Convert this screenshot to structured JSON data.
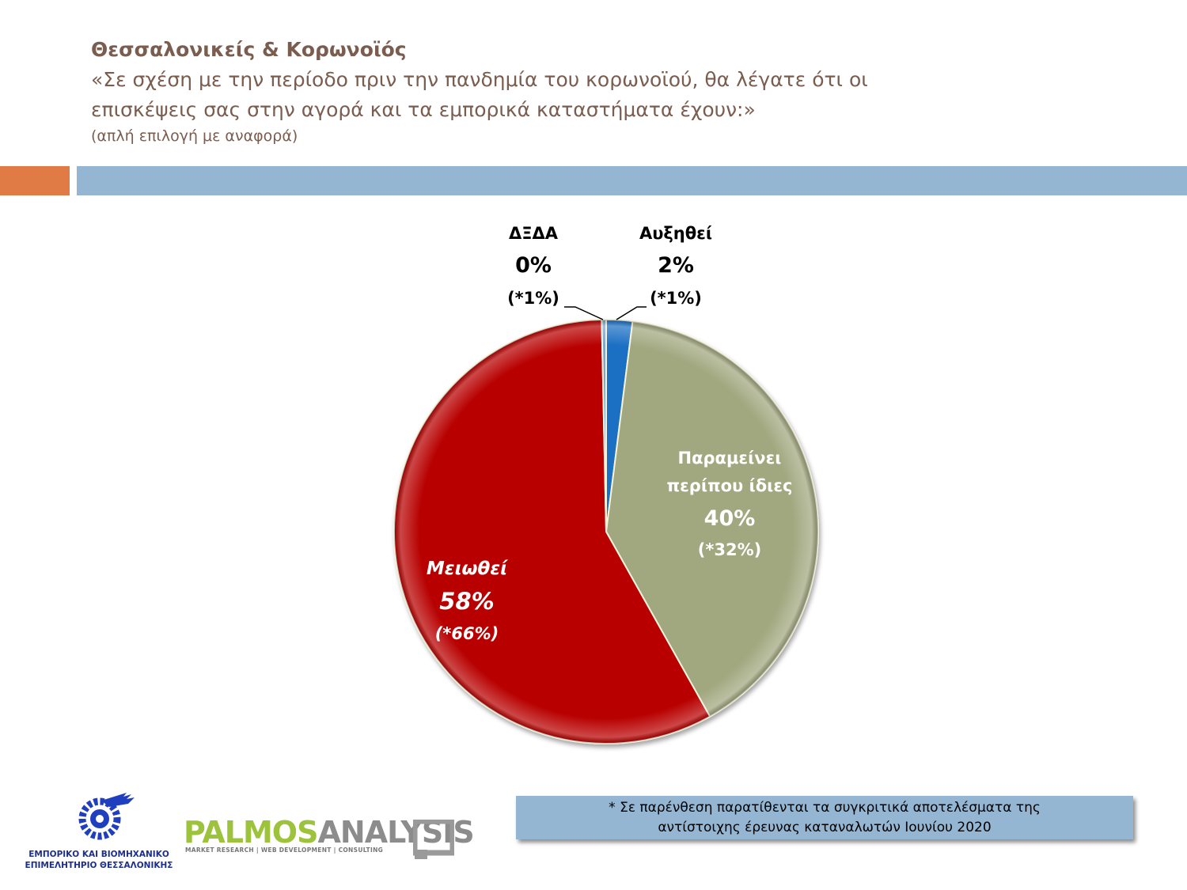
{
  "header": {
    "title": "Θεσσαλονικείς & Κορωνοϊός",
    "question_line1": "«Σε σχέση με την περίοδο πριν την πανδημία του κορωνοϊού, θα λέγατε ότι οι",
    "question_line2": "επισκέψεις σας στην αγορά και τα εμπορικά καταστήματα έχουν:»",
    "note": "(απλή επιλογή με αναφορά)"
  },
  "chart_data": {
    "type": "pie",
    "categories": [
      "Αυξηθεί",
      "Παραμείνει περίπου ίδιες",
      "Μειωθεί",
      "ΔΞΔΑ"
    ],
    "values": [
      2,
      40,
      58,
      0
    ],
    "value_labels": [
      "2%",
      "40%",
      "58%",
      "0%"
    ],
    "comparison_labels": [
      "(*1%)",
      "(*32%)",
      "(*66%)",
      "(*1%)"
    ],
    "label_lines": [
      [
        "Αυξηθεί"
      ],
      [
        "Παραμείνει",
        "περίπου ίδιες"
      ],
      [
        "Μειωθεί"
      ],
      [
        "ΔΞΔΑ"
      ]
    ],
    "colors": [
      "#1a6fc4",
      "#a1a77f",
      "#b80505",
      "#7fa6cf"
    ]
  },
  "footnote": {
    "line1": "* Σε παρένθεση παρατίθενται τα συγκριτικά αποτελέσματα της",
    "line2": "αντίστοιχης έρευνας καταναλωτών Ιουνίου 2020"
  },
  "logos": {
    "chamber_line1": "ΕΜΠΟΡΙΚΟ ΚΑΙ ΒΙΟΜΗΧΑΝΙΚΟ",
    "chamber_line2": "ΕΠΙΜΕΛΗΤΗΡΙΟ ΘΕΣΣΑΛΟΝΙΚΗΣ",
    "palmos_part1": "PALMOS",
    "palmos_part2": "ANALYSIS",
    "palmos_tagline": "MARKET RESEARCH | WEB DEVELOPMENT | CONSULTING"
  }
}
